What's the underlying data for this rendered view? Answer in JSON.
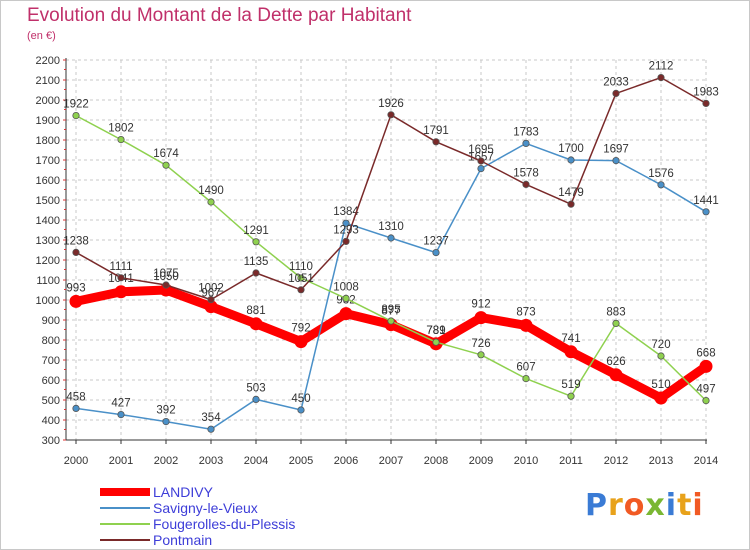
{
  "header": {
    "title": "Evolution du Montant de la Dette par Habitant",
    "subtitle": "(en €)"
  },
  "logo": {
    "text": "Proxiti",
    "letter_colors": [
      "#3a7bd5",
      "#e8a21b",
      "#f15a24",
      "#7ab733",
      "#3a7bd5",
      "#e8a21b",
      "#f15a24"
    ]
  },
  "chart_data": {
    "type": "line",
    "title": "Evolution du Montant de la Dette par Habitant",
    "subtitle": "(en €)",
    "xlabel": "",
    "ylabel": "",
    "x": [
      "2000",
      "2001",
      "2002",
      "2003",
      "2004",
      "2005",
      "2006",
      "2007",
      "2008",
      "2009",
      "2010",
      "2011",
      "2012",
      "2013",
      "2014"
    ],
    "ylim": [
      300,
      2200
    ],
    "ytick_step": 100,
    "grid": true,
    "legend_position": "bottom-left",
    "series": [
      {
        "name": "LANDIVY",
        "color": "#ff0000",
        "emphasis": true,
        "values": [
          993,
          1041,
          1050,
          967,
          881,
          792,
          932,
          877,
          781,
          912,
          873,
          741,
          626,
          510,
          668
        ],
        "labels": [
          "993",
          "1041",
          "1050",
          "967",
          "881",
          "792",
          "932",
          "877",
          "781",
          "912",
          "873",
          "741",
          "626",
          "510",
          "668"
        ]
      },
      {
        "name": "Savigny-le-Vieux",
        "color": "#4a90c8",
        "emphasis": false,
        "values": [
          458,
          427,
          392,
          354,
          503,
          450,
          1384,
          1310,
          1237,
          1657,
          1783,
          1700,
          1697,
          1576,
          1441
        ],
        "labels": [
          "458",
          "427",
          "392",
          "354",
          "503",
          "450",
          "1384",
          "1310",
          "1237",
          "1657",
          "1783",
          "1700",
          "1697",
          "1576",
          "1441"
        ]
      },
      {
        "name": "Fougerolles-du-Plessis",
        "color": "#8fd14f",
        "emphasis": false,
        "values": [
          1922,
          1802,
          1674,
          1490,
          1291,
          1110,
          1008,
          895,
          789,
          726,
          607,
          519,
          883,
          720,
          497
        ],
        "labels": [
          "1922",
          "1802",
          "1674",
          "1490",
          "1291",
          "1110",
          "1008",
          "895",
          "789",
          "726",
          "607",
          "519",
          "883",
          "720",
          "497"
        ]
      },
      {
        "name": "Pontmain",
        "color": "#7a2a2a",
        "emphasis": false,
        "values": [
          1238,
          1111,
          1075,
          1002,
          1135,
          1051,
          1293,
          1926,
          1791,
          1695,
          1578,
          1479,
          2033,
          2112,
          1983
        ],
        "labels": [
          "1238",
          "1111",
          "1075",
          "1002",
          "1135",
          "1051",
          "1293",
          "1926",
          "1791",
          "1695",
          "1578",
          "1479",
          "2033",
          "2112",
          "1983"
        ]
      }
    ]
  }
}
